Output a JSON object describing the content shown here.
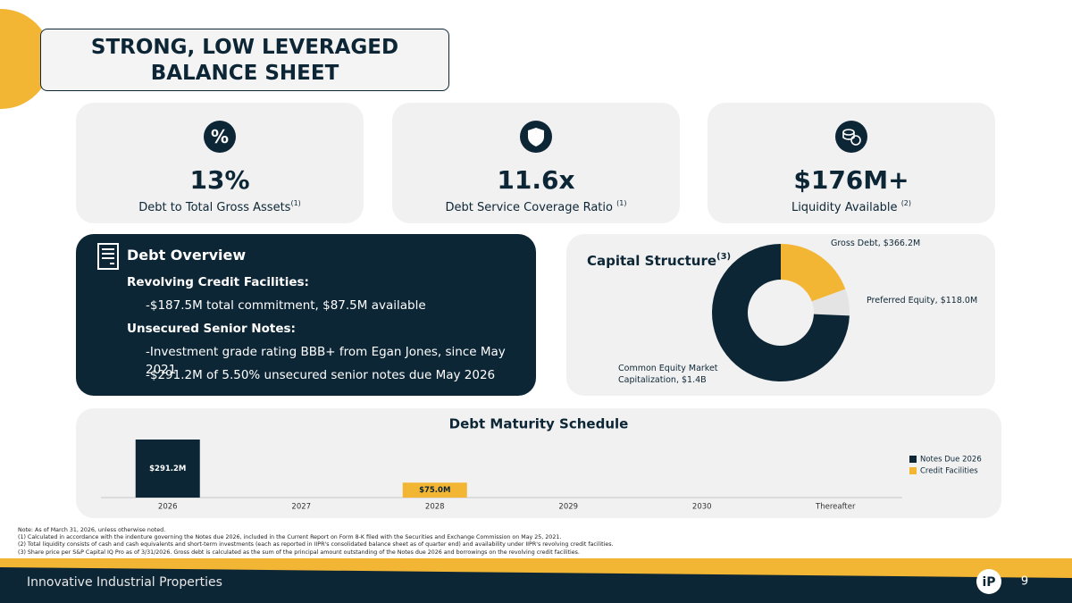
{
  "header": {
    "title_lines": [
      "STRONG, LOW LEVERAGED",
      "BALANCE SHEET"
    ]
  },
  "kpis": [
    {
      "icon": "%",
      "value": "13%",
      "label": "Debt to Total Gross Assets",
      "note": "(1)"
    },
    {
      "value": "11.6x",
      "label": "Debt Service Coverage Ratio",
      "note": "(1)"
    },
    {
      "value": "$176M+",
      "label": "Liquidity Available",
      "note": "(2)"
    }
  ],
  "debt_overview": {
    "title": "Debt Overview",
    "items": [
      {
        "heading": "Revolving Credit Facilities:",
        "lines": [
          "-$187.5M total commitment, $87.5M available"
        ]
      },
      {
        "heading": "Unsecured Senior Notes:",
        "lines": [
          "-Investment grade rating BBB+ from Egan Jones, since May 2021",
          "-$291.2M of 5.50% unsecured senior notes due May 2026"
        ]
      }
    ]
  },
  "chart_data": [
    {
      "type": "pie",
      "title": "Capital Structure",
      "title_note": "(3)",
      "values": [
        366.2,
        118.0,
        1400
      ],
      "value_labels": [
        "Gross Debt, $366.2M",
        "Preferred Equity, $118.0M",
        "Common Equity Market Capitalization, $1.4B"
      ],
      "colors": [
        "#f3b634",
        "#e4e4e4",
        "#0d2636"
      ]
    },
    {
      "type": "bar",
      "title": "Debt Maturity Schedule",
      "categories": [
        "2026",
        "2027",
        "2028",
        "2029",
        "2030",
        "Thereafter"
      ],
      "series": [
        {
          "name": "Notes Due 2026",
          "color": "#0d2636",
          "values": [
            291.2,
            null,
            null,
            null,
            null,
            null
          ],
          "value_labels": [
            "$291.2M",
            null,
            null,
            null,
            null,
            null
          ]
        },
        {
          "name": "Credit Facilities",
          "color": "#f3b634",
          "values": [
            null,
            null,
            75.0,
            null,
            null,
            null
          ],
          "value_labels": [
            null,
            null,
            "$75.0M",
            null,
            null,
            null
          ]
        }
      ]
    }
  ],
  "footnotes": [
    "Note: As of March 31, 2026, unless otherwise noted.",
    "(1)   Calculated in accordance with the indenture governing the Notes due 2026, included in the Current Report on Form 8-K filed with the Securities and Exchange Commission on May 25, 2021.",
    "(2)   Total liquidity consists of cash and cash equivalents and short-term investments (each as reported in IIPR's consolidated balance sheet as of quarter end) and availability under IIPR's revolving credit facilities.",
    "(3)   Share price per S&P Capital IQ Pro as of 3/31/2026. Gross debt is calculated as the sum of the principal amount outstanding of the Notes due 2026 and borrowings on the revolving credit facilities."
  ],
  "footer": {
    "company": "Innovative Industrial Properties",
    "logo": "iP",
    "page": "9"
  }
}
